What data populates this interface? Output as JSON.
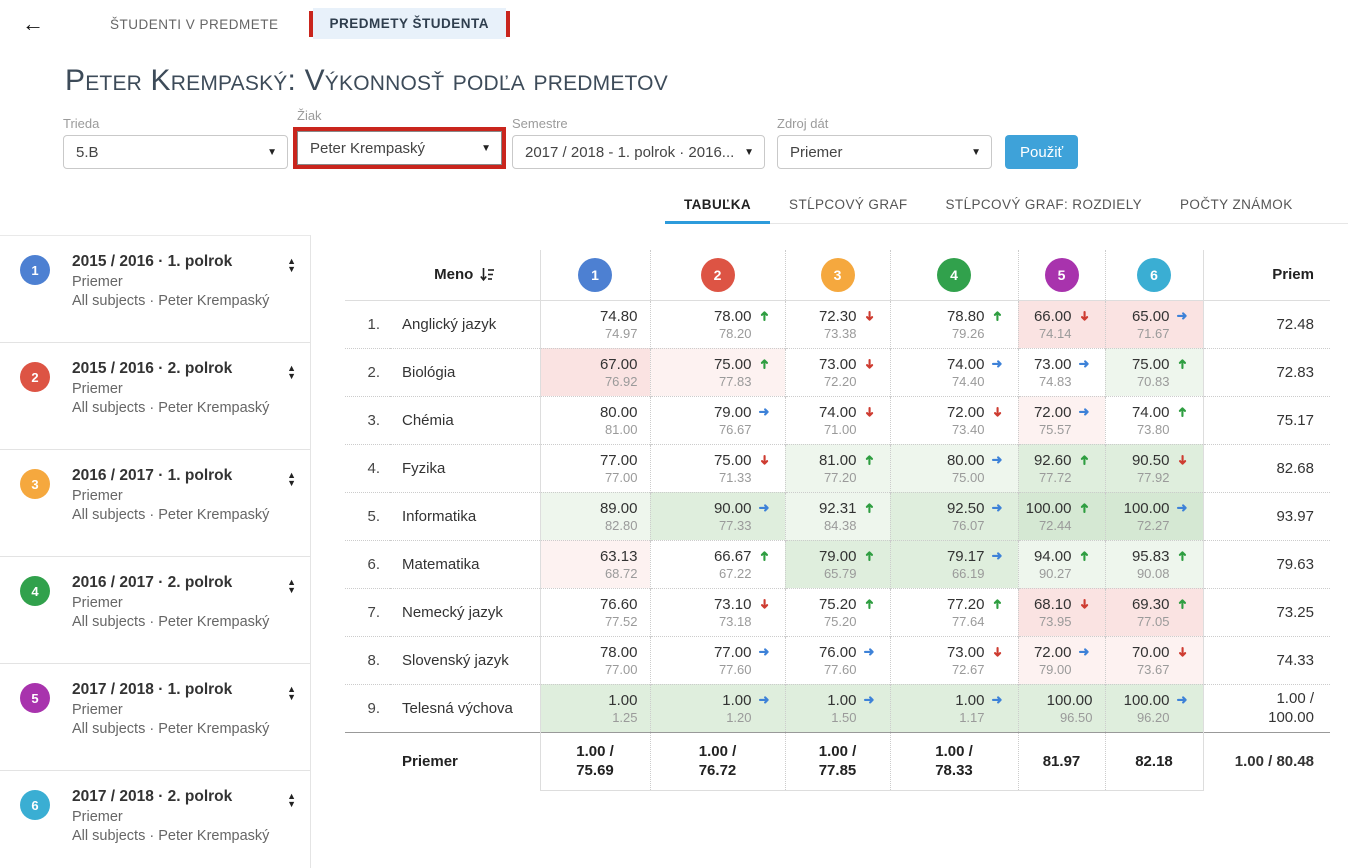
{
  "header": {
    "back_icon": "arrow-left",
    "tab_students": "ŠTUDENTI V PREDMETE",
    "tab_subjects": "PREDMETY ŠTUDENTA",
    "highlight_color": "#c9251d",
    "active_tab_bg": "#e8f1fa"
  },
  "title": "Peter Krempaský: Výkonnosť podľa predmetov",
  "filters": {
    "trieda": {
      "label": "Trieda",
      "value": "5.B"
    },
    "ziak": {
      "label": "Žiak",
      "value": "Peter Krempaský",
      "highlighted": true
    },
    "semestre": {
      "label": "Semestre",
      "value": "2017 / 2018 - 1. polrok · 2016..."
    },
    "zdroj": {
      "label": "Zdroj dát",
      "value": "Priemer"
    },
    "apply_label": "Použiť",
    "apply_color": "#3ea2d9"
  },
  "view_tabs": [
    {
      "label": "TABUĽKA",
      "active": true
    },
    {
      "label": "STĹPCOVÝ GRAF",
      "active": false
    },
    {
      "label": "STĹPCOVÝ GRAF: ROZDIELY",
      "active": false
    },
    {
      "label": "POČTY ZNÁMOK",
      "active": false
    }
  ],
  "periods": [
    {
      "num": "1",
      "color": "#4d80d2",
      "title": "2015 / 2016 · 1. polrok",
      "line2": "Priemer",
      "line3": "All subjects · Peter Krempaský"
    },
    {
      "num": "2",
      "color": "#dd5444",
      "title": "2015 / 2016 · 2. polrok",
      "line2": "Priemer",
      "line3": "All subjects · Peter Krempaský"
    },
    {
      "num": "3",
      "color": "#f5a83e",
      "title": "2016 / 2017 · 1. polrok",
      "line2": "Priemer",
      "line3": "All subjects · Peter Krempaský"
    },
    {
      "num": "4",
      "color": "#31a14c",
      "title": "2016 / 2017 · 2. polrok",
      "line2": "Priemer",
      "line3": "All subjects · Peter Krempaský"
    },
    {
      "num": "5",
      "color": "#a833ad",
      "title": "2017 / 2018 · 1. polrok",
      "line2": "Priemer",
      "line3": "All subjects · Peter Krempaský"
    },
    {
      "num": "6",
      "color": "#3aaed3",
      "title": "2017 / 2018 · 2. polrok",
      "line2": "Priemer",
      "line3": "All subjects · Peter Krempaský"
    }
  ],
  "table": {
    "name_header": "Meno",
    "priem_header": "Priem",
    "sort_icon": "sort-amount-icon",
    "trend_colors": {
      "up": "#2f9e41",
      "down": "#ce3c31",
      "right": "#3e82d8"
    },
    "rows": [
      {
        "index": "1.",
        "name": "Anglický jazyk",
        "priem": [
          "72.48"
        ],
        "cells": [
          {
            "v": "74.80",
            "s": "74.97",
            "t": null,
            "bg": "w"
          },
          {
            "v": "78.00",
            "s": "78.20",
            "t": "up",
            "bg": "w"
          },
          {
            "v": "72.30",
            "s": "73.38",
            "t": "down",
            "bg": "w"
          },
          {
            "v": "78.80",
            "s": "79.26",
            "t": "up",
            "bg": "w"
          },
          {
            "v": "66.00",
            "s": "74.14",
            "t": "down",
            "bg": "r2"
          },
          {
            "v": "65.00",
            "s": "71.67",
            "t": "right",
            "bg": "r2"
          }
        ]
      },
      {
        "index": "2.",
        "name": "Biológia",
        "priem": [
          "72.83"
        ],
        "cells": [
          {
            "v": "67.00",
            "s": "76.92",
            "t": null,
            "bg": "r2"
          },
          {
            "v": "75.00",
            "s": "77.83",
            "t": "up",
            "bg": "r1"
          },
          {
            "v": "73.00",
            "s": "72.20",
            "t": "down",
            "bg": "w"
          },
          {
            "v": "74.00",
            "s": "74.40",
            "t": "right",
            "bg": "w"
          },
          {
            "v": "73.00",
            "s": "74.83",
            "t": "right",
            "bg": "w"
          },
          {
            "v": "75.00",
            "s": "70.83",
            "t": "up",
            "bg": "g1"
          }
        ]
      },
      {
        "index": "3.",
        "name": "Chémia",
        "priem": [
          "75.17"
        ],
        "cells": [
          {
            "v": "80.00",
            "s": "81.00",
            "t": null,
            "bg": "w"
          },
          {
            "v": "79.00",
            "s": "76.67",
            "t": "right",
            "bg": "w"
          },
          {
            "v": "74.00",
            "s": "71.00",
            "t": "down",
            "bg": "w"
          },
          {
            "v": "72.00",
            "s": "73.40",
            "t": "down",
            "bg": "w"
          },
          {
            "v": "72.00",
            "s": "75.57",
            "t": "right",
            "bg": "r1"
          },
          {
            "v": "74.00",
            "s": "73.80",
            "t": "up",
            "bg": "w"
          }
        ]
      },
      {
        "index": "4.",
        "name": "Fyzika",
        "priem": [
          "82.68"
        ],
        "cells": [
          {
            "v": "77.00",
            "s": "77.00",
            "t": null,
            "bg": "w"
          },
          {
            "v": "75.00",
            "s": "71.33",
            "t": "down",
            "bg": "w"
          },
          {
            "v": "81.00",
            "s": "77.20",
            "t": "up",
            "bg": "g1"
          },
          {
            "v": "80.00",
            "s": "75.00",
            "t": "right",
            "bg": "g1"
          },
          {
            "v": "92.60",
            "s": "77.72",
            "t": "up",
            "bg": "g2"
          },
          {
            "v": "90.50",
            "s": "77.92",
            "t": "down",
            "bg": "g2"
          }
        ]
      },
      {
        "index": "5.",
        "name": "Informatika",
        "priem": [
          "93.97"
        ],
        "cells": [
          {
            "v": "89.00",
            "s": "82.80",
            "t": null,
            "bg": "g1"
          },
          {
            "v": "90.00",
            "s": "77.33",
            "t": "right",
            "bg": "g2"
          },
          {
            "v": "92.31",
            "s": "84.38",
            "t": "up",
            "bg": "g1"
          },
          {
            "v": "92.50",
            "s": "76.07",
            "t": "right",
            "bg": "g2"
          },
          {
            "v": "100.00",
            "s": "72.44",
            "t": "up",
            "bg": "g3"
          },
          {
            "v": "100.00",
            "s": "72.27",
            "t": "right",
            "bg": "g3"
          }
        ]
      },
      {
        "index": "6.",
        "name": "Matematika",
        "priem": [
          "79.63"
        ],
        "cells": [
          {
            "v": "63.13",
            "s": "68.72",
            "t": null,
            "bg": "r1"
          },
          {
            "v": "66.67",
            "s": "67.22",
            "t": "up",
            "bg": "w"
          },
          {
            "v": "79.00",
            "s": "65.79",
            "t": "up",
            "bg": "g2"
          },
          {
            "v": "79.17",
            "s": "66.19",
            "t": "right",
            "bg": "g2"
          },
          {
            "v": "94.00",
            "s": "90.27",
            "t": "up",
            "bg": "g1"
          },
          {
            "v": "95.83",
            "s": "90.08",
            "t": "up",
            "bg": "g1"
          }
        ]
      },
      {
        "index": "7.",
        "name": "Nemecký jazyk",
        "priem": [
          "73.25"
        ],
        "cells": [
          {
            "v": "76.60",
            "s": "77.52",
            "t": null,
            "bg": "w"
          },
          {
            "v": "73.10",
            "s": "73.18",
            "t": "down",
            "bg": "w"
          },
          {
            "v": "75.20",
            "s": "75.20",
            "t": "up",
            "bg": "w"
          },
          {
            "v": "77.20",
            "s": "77.64",
            "t": "up",
            "bg": "w"
          },
          {
            "v": "68.10",
            "s": "73.95",
            "t": "down",
            "bg": "r2"
          },
          {
            "v": "69.30",
            "s": "77.05",
            "t": "up",
            "bg": "r2"
          }
        ]
      },
      {
        "index": "8.",
        "name": "Slovenský jazyk",
        "priem": [
          "74.33"
        ],
        "cells": [
          {
            "v": "78.00",
            "s": "77.00",
            "t": null,
            "bg": "w"
          },
          {
            "v": "77.00",
            "s": "77.60",
            "t": "right",
            "bg": "w"
          },
          {
            "v": "76.00",
            "s": "77.60",
            "t": "right",
            "bg": "w"
          },
          {
            "v": "73.00",
            "s": "72.67",
            "t": "down",
            "bg": "w"
          },
          {
            "v": "72.00",
            "s": "79.00",
            "t": "right",
            "bg": "r1"
          },
          {
            "v": "70.00",
            "s": "73.67",
            "t": "down",
            "bg": "r1"
          }
        ]
      },
      {
        "index": "9.",
        "name": "Telesná výchova",
        "priem": [
          "1.00 /",
          "100.00"
        ],
        "cells": [
          {
            "v": "1.00",
            "s": "1.25",
            "t": null,
            "bg": "g2"
          },
          {
            "v": "1.00",
            "s": "1.20",
            "t": "right",
            "bg": "g2"
          },
          {
            "v": "1.00",
            "s": "1.50",
            "t": "right",
            "bg": "g2"
          },
          {
            "v": "1.00",
            "s": "1.17",
            "t": "right",
            "bg": "g2"
          },
          {
            "v": "100.00",
            "s": "96.50",
            "t": null,
            "bg": "g2"
          },
          {
            "v": "100.00",
            "s": "96.20",
            "t": "right",
            "bg": "g2"
          }
        ]
      }
    ],
    "footer": {
      "label": "Priemer",
      "cells": [
        [
          "1.00 /",
          "75.69"
        ],
        [
          "1.00 /",
          "76.72"
        ],
        [
          "1.00 /",
          "77.85"
        ],
        [
          "1.00 /",
          "78.33"
        ],
        [
          "81.97"
        ],
        [
          "82.18"
        ]
      ],
      "priem": [
        "1.00 / 80.48"
      ]
    }
  }
}
